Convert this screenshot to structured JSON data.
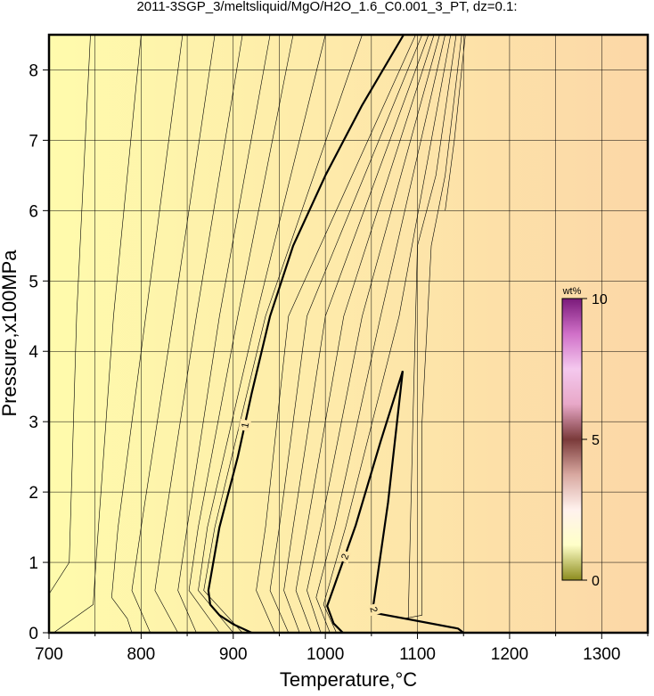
{
  "chart_data": {
    "type": "contour",
    "title": "2011-3SGP_3/meltsliquid/MgO/H2O_1.6_C0.001_3_PT, dz=0.1:",
    "x_label": "Temperature,°C",
    "y_label": "Pressure,x100MPa",
    "xlim": [
      700,
      1350
    ],
    "ylim": [
      0,
      8.5
    ],
    "xticks": [
      700,
      800,
      900,
      1000,
      1100,
      1200,
      1300
    ],
    "xminor": [
      750,
      850,
      950,
      1050,
      1150,
      1250,
      1350
    ],
    "yticks": [
      0,
      1,
      2,
      3,
      4,
      5,
      6,
      7,
      8
    ],
    "grid": true,
    "fill_colors": [
      "#fffbac",
      "#fcd7a7"
    ],
    "line_color": "#000000",
    "contours": [
      {
        "x": [
          745,
          730,
          722,
          700
        ],
        "y": [
          8.5,
          4.5,
          1.0,
          0.55
        ],
        "line_width": 0.6
      },
      {
        "x": [
          800,
          770,
          752,
          748,
          705
        ],
        "y": [
          8.5,
          4.5,
          1.2,
          0.4,
          0
        ],
        "line_width": 0.6
      },
      {
        "x": [
          845,
          805,
          775,
          768,
          785,
          790
        ],
        "y": [
          8.5,
          4.5,
          1.5,
          0.5,
          0.2,
          0
        ],
        "line_width": 0.6
      },
      {
        "x": [
          880,
          835,
          800,
          790,
          810
        ],
        "y": [
          8.5,
          4.5,
          1.5,
          0.6,
          0
        ],
        "line_width": 0.6
      },
      {
        "x": [
          910,
          860,
          825,
          815,
          840
        ],
        "y": [
          8.5,
          4.5,
          1.5,
          0.6,
          0
        ],
        "line_width": 0.6
      },
      {
        "x": [
          940,
          885,
          850,
          840,
          860
        ],
        "y": [
          8.5,
          4.5,
          1.5,
          0.6,
          0
        ],
        "line_width": 0.6
      },
      {
        "x": [
          965,
          905,
          862,
          852,
          885
        ],
        "y": [
          8.5,
          4.5,
          1.5,
          0.6,
          0
        ],
        "line_width": 0.6
      },
      {
        "x": [
          1000,
          925,
          872,
          862,
          900
        ],
        "y": [
          8.5,
          4.5,
          1.5,
          0.6,
          0
        ],
        "line_width": 0.6
      },
      {
        "x": [
          1040,
          935,
          880,
          868,
          910
        ],
        "y": [
          8.5,
          4.5,
          1.5,
          0.6,
          0
        ],
        "line_width": 0.6
      },
      {
        "x": [
          1085,
          1040,
          1000,
          965,
          940,
          920,
          905,
          885,
          873,
          875,
          885,
          900,
          920
        ],
        "y": [
          8.5,
          7.5,
          6.5,
          5.5,
          4.5,
          3.4,
          2.5,
          1.5,
          0.6,
          0.4,
          0.25,
          0.12,
          0
        ],
        "line_width": 2.2,
        "label": "1"
      },
      {
        "x": [
          1098,
          960,
          935,
          925,
          945
        ],
        "y": [
          8.5,
          4.5,
          1.5,
          0.6,
          0
        ],
        "line_width": 0.6
      },
      {
        "x": [
          1105,
          980,
          950,
          940,
          960
        ],
        "y": [
          8.5,
          4.5,
          1.5,
          0.6,
          0
        ],
        "line_width": 0.6
      },
      {
        "x": [
          1112,
          1000,
          965,
          955,
          972
        ],
        "y": [
          8.5,
          4.5,
          1.5,
          0.6,
          0
        ],
        "line_width": 0.6
      },
      {
        "x": [
          1118,
          1020,
          980,
          968,
          985
        ],
        "y": [
          8.5,
          4.5,
          1.5,
          0.6,
          0
        ],
        "line_width": 0.6
      },
      {
        "x": [
          1124,
          1040,
          995,
          980,
          995
        ],
        "y": [
          8.5,
          4.5,
          1.5,
          0.6,
          0
        ],
        "line_width": 0.6
      },
      {
        "x": [
          1130,
          1060,
          1010,
          990,
          1005
        ],
        "y": [
          8.5,
          4.5,
          1.5,
          0.5,
          0
        ],
        "line_width": 0.6
      },
      {
        "x": [
          1136,
          1080,
          1022,
          998,
          1012
        ],
        "y": [
          8.5,
          4.5,
          1.5,
          0.4,
          0
        ],
        "line_width": 0.6
      },
      {
        "x": [
          1084,
          1060,
          1033,
          1009,
          1002,
          1009,
          1019
        ],
        "y": [
          3.72,
          2.72,
          1.53,
          0.64,
          0.38,
          0.13,
          0
        ],
        "line_width": 2.2,
        "label": "2"
      },
      {
        "x": [
          1084,
          1068,
          1052,
          1054,
          1091,
          1144,
          1150
        ],
        "y": [
          3.72,
          1.85,
          0.38,
          0.28,
          0.19,
          0.06,
          0
        ],
        "line_width": 2.2,
        "label": "2"
      },
      {
        "x": [
          1142,
          1120,
          1100,
          1095,
          1090
        ],
        "y": [
          8.5,
          6.5,
          5.5,
          3.0,
          0.2
        ],
        "line_width": 0.6
      },
      {
        "x": [
          1148,
          1130,
          1115,
          1105,
          1105,
          1085
        ],
        "y": [
          8.5,
          6.5,
          5.5,
          3.0,
          0.25,
          0.2
        ],
        "line_width": 0.6
      },
      {
        "x": [
          1152,
          1140,
          1130
        ],
        "y": [
          8.5,
          7.0,
          6.0
        ],
        "line_width": 0.6
      }
    ],
    "colorbar": {
      "label": "wt%",
      "lim": [
        0,
        10
      ],
      "ticks": [
        0,
        5,
        10
      ],
      "colors": [
        "#8c8c1e",
        "#ffffc8",
        "#fff2ee",
        "#d8a8a0",
        "#7a3a3a",
        "#e8a8c8",
        "#f4c8ee",
        "#d070c8",
        "#7a1a7a"
      ]
    }
  }
}
